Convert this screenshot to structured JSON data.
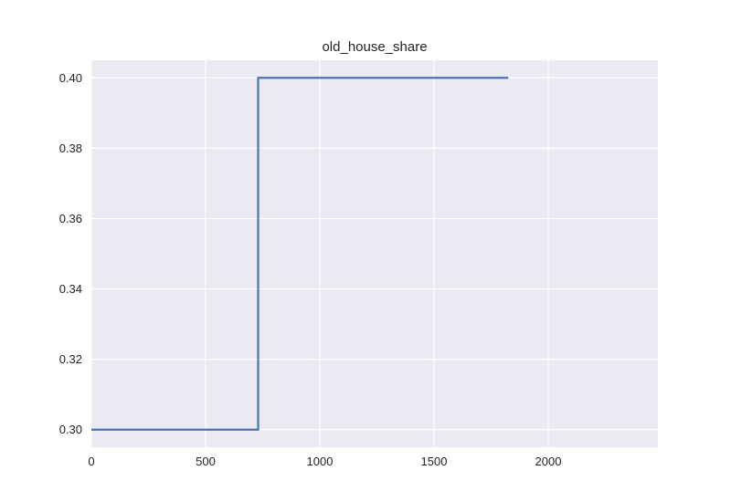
{
  "chart_data": {
    "type": "line",
    "title": "old_house_share",
    "xlabel": "",
    "ylabel": "",
    "xlim": [
      0,
      2480
    ],
    "ylim": [
      0.295,
      0.405
    ],
    "x_ticks": [
      0,
      500,
      1000,
      1500,
      2000
    ],
    "x_tick_labels": [
      "0",
      "500",
      "1000",
      "1500",
      "2000"
    ],
    "y_ticks": [
      0.3,
      0.32,
      0.34,
      0.36,
      0.38,
      0.4
    ],
    "y_tick_labels": [
      "0.30",
      "0.32",
      "0.34",
      "0.36",
      "0.38",
      "0.40"
    ],
    "grid": true,
    "series": [
      {
        "step": "post",
        "color": "#4c72b0",
        "x": [
          0,
          730,
          730,
          1825
        ],
        "y": [
          0.3,
          0.3,
          0.4,
          0.4
        ]
      }
    ]
  },
  "style": {
    "background": "#eaeaf2",
    "grid_color": "#ffffff"
  }
}
